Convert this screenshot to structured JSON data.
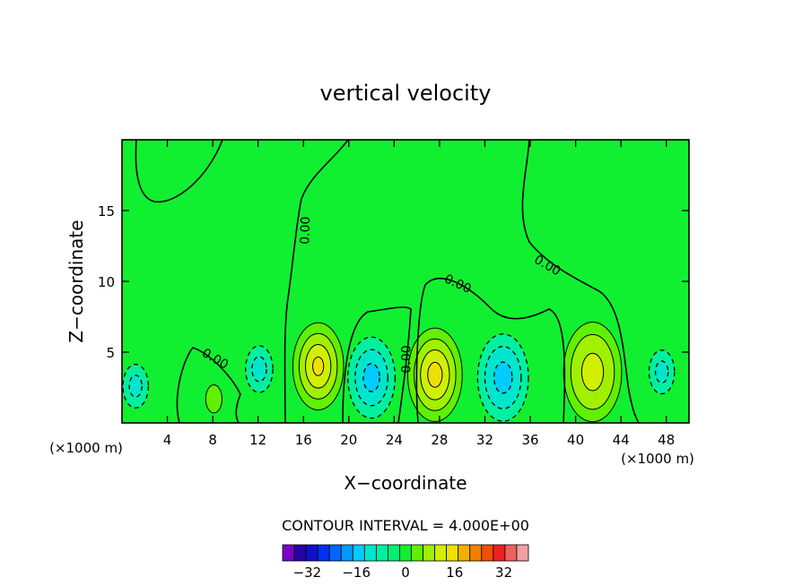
{
  "chart_data": {
    "type": "heatmap",
    "title": "vertical velocity",
    "xlabel": "X−coordinate",
    "ylabel": "Z−coordinate",
    "x_unit_left": "(×1000 m)",
    "x_unit_right": "(×1000 m)",
    "xlim": [
      0,
      50
    ],
    "ylim": [
      0,
      20
    ],
    "x_ticks": [
      4,
      8,
      12,
      16,
      20,
      24,
      28,
      32,
      36,
      40,
      44,
      48
    ],
    "x_tick_labels": [
      "4",
      "8",
      "12",
      "16",
      "20",
      "24",
      "28",
      "32",
      "36",
      "40",
      "44",
      "48"
    ],
    "y_ticks": [
      5,
      10,
      15
    ],
    "y_tick_labels": [
      "5",
      "10",
      "15"
    ],
    "background_value": 0,
    "cells": [
      {
        "x": 1.2,
        "z": 2.6,
        "w": 0.7,
        "v": -6
      },
      {
        "x": 1.2,
        "z": 2.6,
        "w": 0.35,
        "v": -10
      },
      {
        "x": 8.1,
        "z": 1.7,
        "w": 0.45,
        "v": 6
      },
      {
        "x": 12.1,
        "z": 3.8,
        "w": 0.75,
        "v": -6
      },
      {
        "x": 12.1,
        "z": 3.8,
        "w": 0.4,
        "v": -10
      },
      {
        "x": 17.3,
        "z": 4.0,
        "w": 1.4,
        "v": 6
      },
      {
        "x": 17.3,
        "z": 4.0,
        "w": 1.05,
        "v": 10
      },
      {
        "x": 17.3,
        "z": 4.0,
        "w": 0.7,
        "v": 14
      },
      {
        "x": 17.3,
        "z": 4.0,
        "w": 0.3,
        "v": 18
      },
      {
        "x": 22.0,
        "z": 3.2,
        "w": 1.3,
        "v": -6
      },
      {
        "x": 22.0,
        "z": 3.2,
        "w": 0.9,
        "v": -10
      },
      {
        "x": 22.0,
        "z": 3.2,
        "w": 0.45,
        "v": -14
      },
      {
        "x": 27.6,
        "z": 3.4,
        "w": 1.5,
        "v": 6
      },
      {
        "x": 27.6,
        "z": 3.4,
        "w": 1.15,
        "v": 10
      },
      {
        "x": 27.6,
        "z": 3.4,
        "w": 0.8,
        "v": 14
      },
      {
        "x": 27.6,
        "z": 3.4,
        "w": 0.4,
        "v": 18
      },
      {
        "x": 33.6,
        "z": 3.2,
        "w": 1.4,
        "v": -6
      },
      {
        "x": 33.6,
        "z": 3.2,
        "w": 1.0,
        "v": -10
      },
      {
        "x": 33.6,
        "z": 3.2,
        "w": 0.5,
        "v": -14
      },
      {
        "x": 41.5,
        "z": 3.6,
        "w": 1.6,
        "v": 6
      },
      {
        "x": 41.5,
        "z": 3.6,
        "w": 1.2,
        "v": 10
      },
      {
        "x": 41.5,
        "z": 3.6,
        "w": 0.6,
        "v": 14
      },
      {
        "x": 47.6,
        "z": 3.6,
        "w": 0.7,
        "v": -6
      },
      {
        "x": 47.6,
        "z": 3.6,
        "w": 0.35,
        "v": -10
      }
    ],
    "contour_labels": [
      {
        "text": "0.00",
        "x": 16.2,
        "z": 13.6,
        "rotate": -88
      },
      {
        "text": "0.00",
        "x": 8.2,
        "z": 4.5,
        "rotate": 30
      },
      {
        "text": "0.00",
        "x": 25.1,
        "z": 4.5,
        "rotate": -90
      },
      {
        "text": "0.00",
        "x": 29.6,
        "z": 9.8,
        "rotate": 25
      },
      {
        "text": "0.00",
        "x": 37.5,
        "z": 11.1,
        "rotate": 30
      }
    ],
    "colorbar": {
      "title": "CONTOUR INTERVAL = 4.000E+00",
      "interval": 4,
      "min": -40,
      "max": 40,
      "colors": [
        "#7a00c8",
        "#2a00a8",
        "#1010cc",
        "#0030f0",
        "#0066ff",
        "#0099ff",
        "#00ccff",
        "#00e6cc",
        "#00f0a0",
        "#00f070",
        "#10f030",
        "#60f000",
        "#a0f000",
        "#d0f000",
        "#f0e000",
        "#f0b000",
        "#f08000",
        "#f05000",
        "#f02020",
        "#f06060",
        "#f0a0a0"
      ],
      "tick_values": [
        -32,
        -16,
        0,
        16,
        32
      ],
      "tick_labels": [
        "−32",
        "−16",
        "0",
        "16",
        "32"
      ]
    }
  }
}
